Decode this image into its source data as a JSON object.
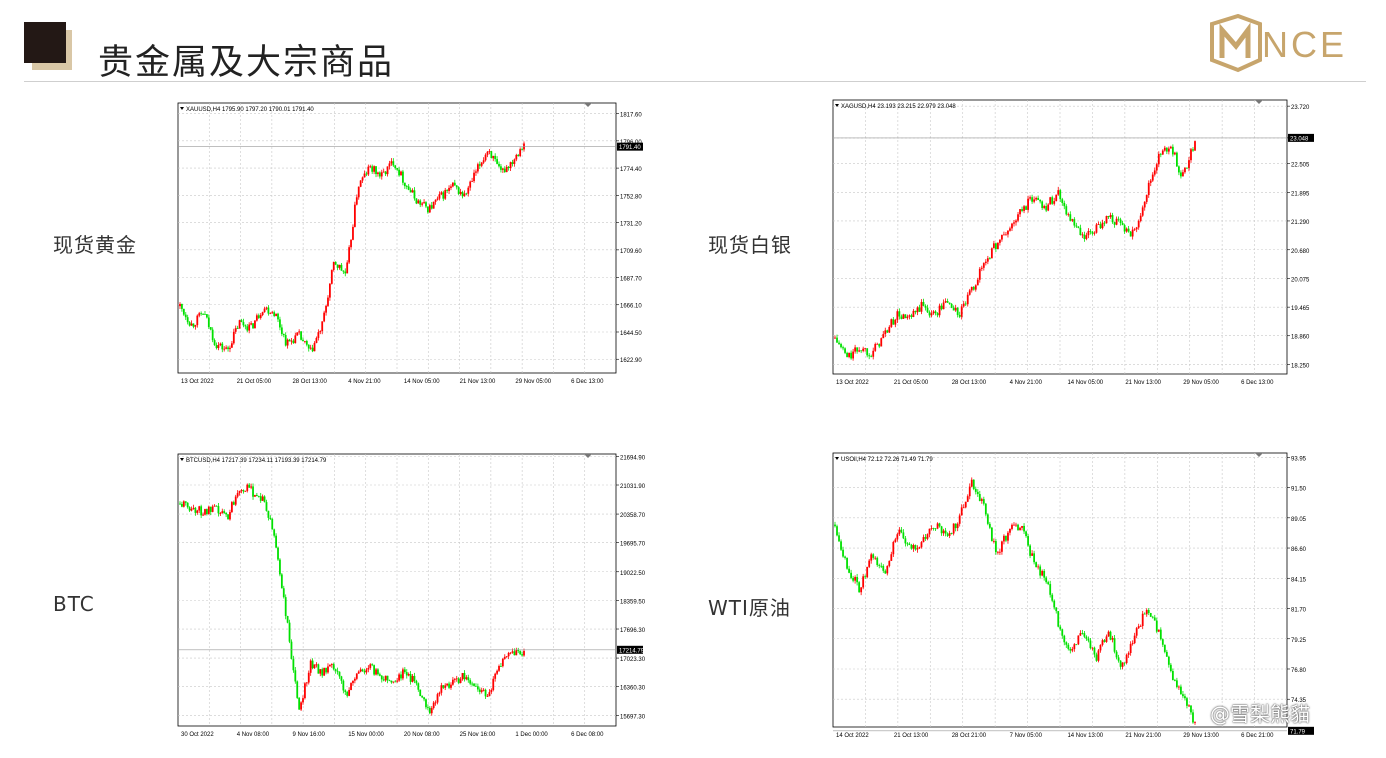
{
  "header": {
    "title": "贵金属及大宗商品"
  },
  "logo": {
    "text": "NCE",
    "color": "#c7a56c"
  },
  "watermark": "@雪梨熊貓",
  "colors": {
    "up": "#ff0000",
    "down": "#00e000",
    "grid": "#c8c8c8",
    "axis": "#000000"
  },
  "chart_data": [
    {
      "type": "candlestick",
      "label": "现货黄金",
      "info": "XAUUSD,H4  1795.90 1797.20 1790.01 1791.40",
      "current": "1791.40",
      "ylim": [
        1612.0,
        1826.0
      ],
      "yticks": [
        "1817.60",
        "1796.00",
        "1774.40",
        "1752.80",
        "1731.20",
        "1709.60",
        "1687.70",
        "1666.10",
        "1644.50",
        "1622.90"
      ],
      "xticks": [
        "13 Oct 2022",
        "21 Oct 05:00",
        "28 Oct 13:00",
        "4 Nov 21:00",
        "14 Nov 05:00",
        "21 Nov 13:00",
        "29 Nov 05:00",
        "6 Dec 13:00"
      ],
      "anchors": [
        1665,
        1650,
        1660,
        1635,
        1630,
        1652,
        1648,
        1664,
        1660,
        1635,
        1642,
        1628,
        1650,
        1700,
        1690,
        1760,
        1775,
        1768,
        1780,
        1762,
        1748,
        1742,
        1752,
        1760,
        1752,
        1772,
        1790,
        1770,
        1780,
        1795
      ]
    },
    {
      "type": "candlestick",
      "label": "现货白银",
      "info": "XAGUSD,H4  23.193 23.215 22.979 23.048",
      "current": "23.048",
      "ylim": [
        18.05,
        23.85
      ],
      "yticks": [
        "23.720",
        "23.048",
        "22.505",
        "21.895",
        "21.290",
        "20.680",
        "20.075",
        "19.465",
        "18.860",
        "18.250"
      ],
      "xticks": [
        "13 Oct 2022",
        "21 Oct 05:00",
        "28 Oct 13:00",
        "4 Nov 21:00",
        "14 Nov 05:00",
        "21 Nov 13:00",
        "29 Nov 05:00",
        "6 Dec 13:00"
      ],
      "anchors": [
        18.8,
        18.4,
        18.6,
        18.5,
        18.9,
        19.3,
        19.2,
        19.5,
        19.3,
        19.6,
        19.3,
        19.8,
        20.4,
        20.8,
        21.1,
        21.5,
        21.8,
        21.6,
        21.9,
        21.3,
        20.9,
        21.1,
        21.4,
        21.2,
        21.0,
        21.8,
        22.6,
        22.9,
        22.2,
        23.0
      ]
    },
    {
      "type": "candlestick",
      "label": "BTC",
      "info": "BTCUSD,H4  17217.39 17234.11 17193.39 17214.79",
      "current": "17214.79",
      "ylim": [
        15450,
        21750
      ],
      "yticks": [
        "21694.90",
        "21031.90",
        "20358.70",
        "19695.70",
        "19022.50",
        "18359.50",
        "17696.30",
        "17023.30",
        "16360.30",
        "15697.30"
      ],
      "xticks": [
        "30 Oct 2022",
        "4 Nov 08:00",
        "9 Nov 16:00",
        "15 Nov 00:00",
        "20 Nov 08:00",
        "25 Nov 16:00",
        "1 Dec 00:00",
        "6 Dec 08:00"
      ],
      "anchors": [
        20600,
        20500,
        20400,
        20450,
        20300,
        21000,
        20900,
        20700,
        19800,
        17900,
        15800,
        16900,
        16700,
        16800,
        16200,
        16700,
        16800,
        16600,
        16500,
        16700,
        16400,
        15800,
        16300,
        16500,
        16600,
        16300,
        16200,
        16900,
        17100,
        17200
      ]
    },
    {
      "type": "candlestick",
      "label": "WTI原油",
      "info": "USOil,H4  72.12 72.26 71.49 71.79",
      "current": "71.79",
      "ylim": [
        72.1,
        94.3
      ],
      "yticks": [
        "93.95",
        "91.50",
        "89.05",
        "86.60",
        "84.15",
        "81.70",
        "79.25",
        "76.80",
        "74.35"
      ],
      "xticks": [
        "14 Oct 2022",
        "21 Oct 13:00",
        "28 Oct 21:00",
        "7 Nov 05:00",
        "14 Nov 13:00",
        "21 Nov 21:00",
        "29 Nov 13:00",
        "6 Dec 21:00"
      ],
      "anchors": [
        88.5,
        85.0,
        83.2,
        86.0,
        84.5,
        88.0,
        86.5,
        87.0,
        88.5,
        87.5,
        89.0,
        92.0,
        90.0,
        86.0,
        88.0,
        88.5,
        85.5,
        84.0,
        80.5,
        78.0,
        80.0,
        77.5,
        80.0,
        77.0,
        79.0,
        81.5,
        80.0,
        76.5,
        74.5,
        72.5
      ]
    }
  ]
}
